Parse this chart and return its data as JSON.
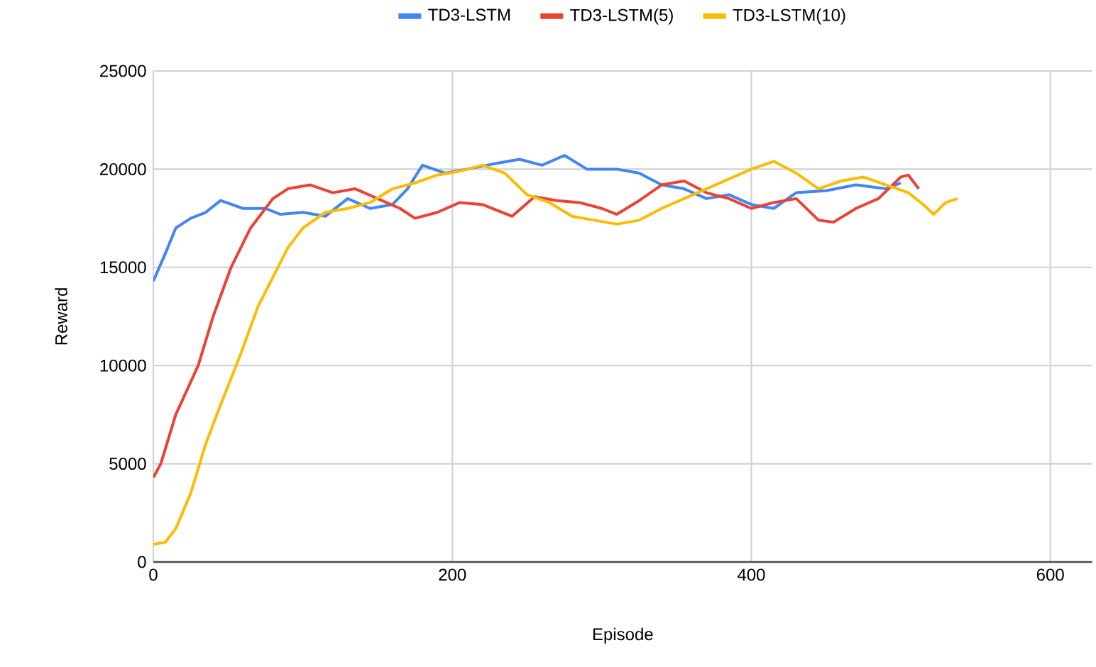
{
  "chart_data": {
    "type": "line",
    "xlabel": "Episode",
    "ylabel": "Reward",
    "xlim": [
      0,
      628
    ],
    "ylim": [
      0,
      25000
    ],
    "xticks": [
      0,
      200,
      400,
      600
    ],
    "yticks": [
      0,
      5000,
      10000,
      15000,
      20000,
      25000
    ],
    "grid": true,
    "legend": "top",
    "marker": "none",
    "series": [
      {
        "name": "TD3-LSTM",
        "color": "#4285f4",
        "x": [
          0,
          8,
          15,
          25,
          35,
          45,
          60,
          75,
          85,
          100,
          115,
          130,
          145,
          160,
          170,
          180,
          195,
          210,
          230,
          245,
          260,
          275,
          290,
          310,
          325,
          340,
          355,
          370,
          385,
          400,
          415,
          430,
          450,
          470,
          490,
          500
        ],
        "values": [
          14300,
          15700,
          17000,
          17500,
          17800,
          18400,
          18000,
          18000,
          17700,
          17800,
          17600,
          18500,
          18000,
          18200,
          19000,
          20200,
          19800,
          20000,
          20300,
          20500,
          20200,
          20700,
          20000,
          20000,
          19800,
          19200,
          19000,
          18500,
          18700,
          18200,
          18000,
          18800,
          18900,
          19200,
          19000,
          19300
        ]
      },
      {
        "name": "TD3-LSTM(5)",
        "color": "#ea4335",
        "x": [
          0,
          5,
          15,
          30,
          40,
          52,
          65,
          80,
          90,
          105,
          120,
          135,
          150,
          165,
          175,
          190,
          205,
          220,
          240,
          255,
          270,
          285,
          300,
          310,
          325,
          340,
          355,
          370,
          385,
          400,
          415,
          430,
          445,
          455,
          470,
          485,
          500,
          505,
          512
        ],
        "values": [
          4300,
          5000,
          7500,
          10000,
          12500,
          15000,
          17000,
          18500,
          19000,
          19200,
          18800,
          19000,
          18500,
          18000,
          17500,
          17800,
          18300,
          18200,
          17600,
          18600,
          18400,
          18300,
          18000,
          17700,
          18400,
          19200,
          19400,
          18800,
          18500,
          18000,
          18300,
          18500,
          17400,
          17300,
          18000,
          18500,
          19600,
          19700,
          19000
        ]
      },
      {
        "name": "TD3-LSTM(10)",
        "color": "#fbbc04",
        "x": [
          0,
          8,
          15,
          25,
          35,
          45,
          58,
          70,
          80,
          90,
          100,
          115,
          130,
          145,
          160,
          175,
          190,
          205,
          220,
          235,
          250,
          265,
          280,
          295,
          310,
          325,
          340,
          355,
          370,
          385,
          400,
          415,
          430,
          445,
          460,
          475,
          490,
          505,
          515,
          522,
          530,
          538
        ],
        "values": [
          900,
          1000,
          1700,
          3500,
          6000,
          8000,
          10500,
          13000,
          14500,
          16000,
          17000,
          17800,
          18000,
          18300,
          19000,
          19300,
          19700,
          19900,
          20200,
          19800,
          18700,
          18300,
          17600,
          17400,
          17200,
          17400,
          18000,
          18500,
          19000,
          19500,
          20000,
          20400,
          19800,
          19000,
          19400,
          19600,
          19200,
          18800,
          18200,
          17700,
          18300,
          18500
        ]
      }
    ]
  }
}
